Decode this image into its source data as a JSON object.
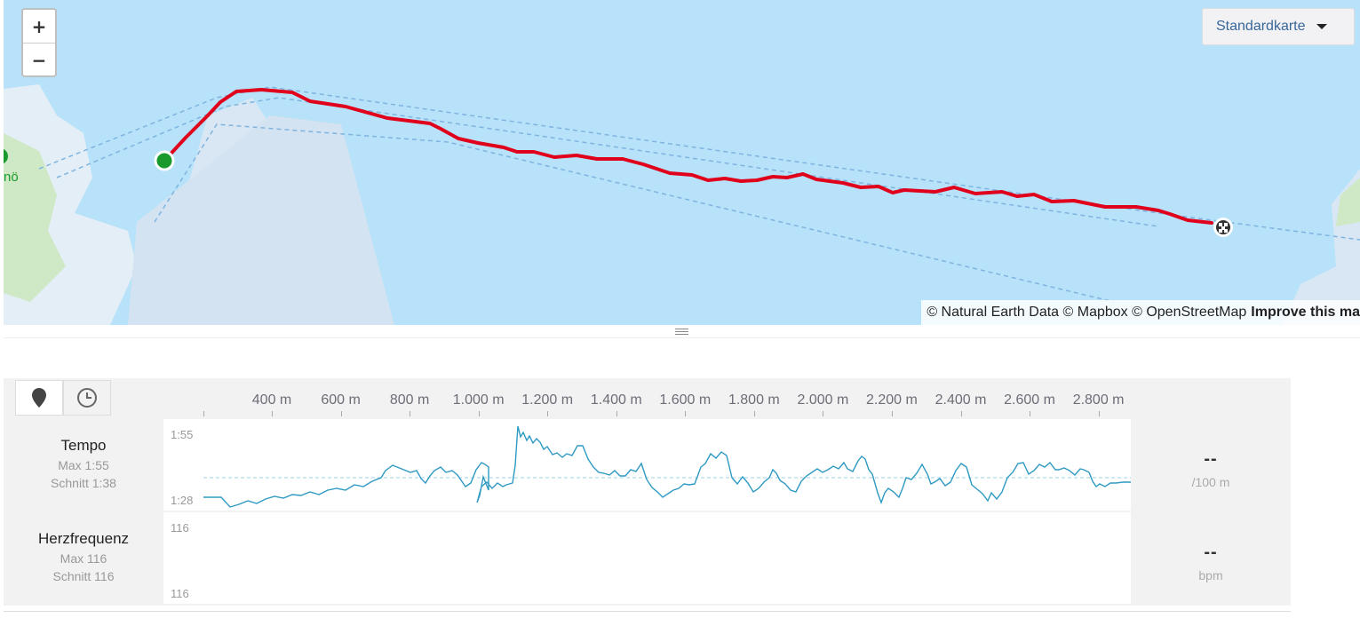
{
  "map": {
    "zoom_in_label": "+",
    "zoom_out_label": "−",
    "map_type": "Standardkarte",
    "attribution_text": "© Natural Earth Data © Mapbox © OpenStreetMap",
    "attribution_link": "Improve this ma",
    "place_label": "nö",
    "colors": {
      "water": "#b7e2f9",
      "route": "#e0001b",
      "start": "#1a9a2c",
      "land": "#d8e7f3"
    }
  },
  "analysis": {
    "toggle": {
      "distance_icon": "map-pin-icon",
      "time_icon": "clock-icon"
    },
    "x_ticks": [
      "400 m",
      "600 m",
      "800 m",
      "1.000 m",
      "1.200 m",
      "1.400 m",
      "1.600 m",
      "1.800 m",
      "2.000 m",
      "2.200 m",
      "2.400 m",
      "2.600 m",
      "2.800 m"
    ],
    "pace": {
      "label": "Tempo",
      "max": "Max 1:55",
      "avg": "Schnitt 1:38",
      "y_top": "1:55",
      "y_bottom": "1:28",
      "current": "--",
      "unit": "/100 m",
      "color": "#2f9ac3"
    },
    "heart": {
      "label": "Herzfrequenz",
      "max": "Max 116",
      "avg": "Schnitt 116",
      "y_top": "116",
      "y_bottom": "116",
      "current": "--",
      "unit": "bpm"
    }
  }
}
